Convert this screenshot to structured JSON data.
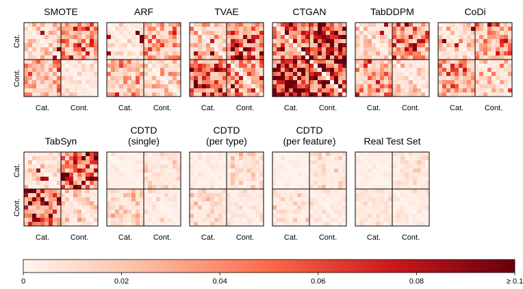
{
  "chart_data": {
    "type": "heatmap",
    "row_labels": [
      "Cat.",
      "Cont."
    ],
    "column_labels": [
      "Cat.",
      "Cont."
    ],
    "panels": [
      {
        "title_lines": [
          "SMOTE"
        ],
        "quadrant_intensity": [
          [
            0.18,
            0.38
          ],
          [
            0.3,
            0.1
          ]
        ],
        "sparse_dark_cells": 4
      },
      {
        "title_lines": [
          "ARF"
        ],
        "quadrant_intensity": [
          [
            0.1,
            0.3
          ],
          [
            0.28,
            0.18
          ]
        ],
        "sparse_dark_cells": 5
      },
      {
        "title_lines": [
          "TVAE"
        ],
        "quadrant_intensity": [
          [
            0.22,
            0.55
          ],
          [
            0.6,
            0.4
          ]
        ],
        "sparse_dark_cells": 3
      },
      {
        "title_lines": [
          "CTGAN"
        ],
        "quadrant_intensity": [
          [
            0.55,
            0.8
          ],
          [
            0.85,
            0.75
          ]
        ],
        "sparse_dark_cells": 0
      },
      {
        "title_lines": [
          "TabDDPM"
        ],
        "quadrant_intensity": [
          [
            0.2,
            0.4
          ],
          [
            0.35,
            0.15
          ]
        ],
        "sparse_dark_cells": 2
      },
      {
        "title_lines": [
          "CoDi"
        ],
        "quadrant_intensity": [
          [
            0.18,
            0.32
          ],
          [
            0.35,
            0.2
          ]
        ],
        "sparse_dark_cells": 3
      },
      {
        "title_lines": [
          "TabSyn"
        ],
        "quadrant_intensity": [
          [
            0.15,
            0.5
          ],
          [
            0.55,
            0.15
          ]
        ],
        "sparse_dark_cells": 3
      },
      {
        "title_lines": [
          "CDTD",
          "(single)"
        ],
        "quadrant_intensity": [
          [
            0.05,
            0.12
          ],
          [
            0.15,
            0.08
          ]
        ],
        "sparse_dark_cells": 0
      },
      {
        "title_lines": [
          "CDTD",
          "(per type)"
        ],
        "quadrant_intensity": [
          [
            0.05,
            0.12
          ],
          [
            0.12,
            0.08
          ]
        ],
        "sparse_dark_cells": 0
      },
      {
        "title_lines": [
          "CDTD",
          "(per feature)"
        ],
        "quadrant_intensity": [
          [
            0.04,
            0.1
          ],
          [
            0.1,
            0.07
          ]
        ],
        "sparse_dark_cells": 0
      },
      {
        "title_lines": [
          "Real Test Set"
        ],
        "quadrant_intensity": [
          [
            0.04,
            0.1
          ],
          [
            0.1,
            0.08
          ]
        ],
        "sparse_dark_cells": 0
      }
    ],
    "colorbar": {
      "min": 0,
      "max": 0.1,
      "colormap": "Reds",
      "tick_values": [
        0,
        0.02,
        0.04,
        0.06,
        0.08,
        0.1
      ],
      "tick_labels": [
        "0",
        "0.02",
        "0.04",
        "0.06",
        "0.08",
        "≥ 0.1"
      ]
    }
  }
}
